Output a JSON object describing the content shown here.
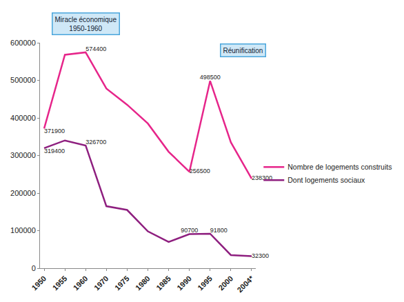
{
  "chart_data": {
    "type": "line",
    "categories": [
      "1950",
      "1955",
      "1960",
      "1970",
      "1975",
      "1980",
      "1985",
      "1990",
      "1995",
      "2000",
      "2004*"
    ],
    "series": [
      {
        "name": "Nombre de logements construits",
        "color": "#e6258a",
        "values": [
          371900,
          568000,
          574400,
          478000,
          435000,
          385000,
          310000,
          256500,
          498500,
          335000,
          238300
        ],
        "value_labels": [
          "371900",
          null,
          "574400",
          null,
          null,
          null,
          null,
          "256500",
          "498500",
          null,
          "238300"
        ]
      },
      {
        "name": "Dont logements sociaux",
        "color": "#8e1f7f",
        "values": [
          319400,
          340000,
          326700,
          165000,
          155000,
          98000,
          70000,
          90700,
          91800,
          35000,
          32300
        ],
        "value_labels": [
          "319400",
          null,
          "326700",
          null,
          null,
          null,
          null,
          "90700",
          "91800",
          null,
          "32300"
        ]
      }
    ],
    "ylim": [
      0,
      600000
    ],
    "yticks": [
      0,
      100000,
      200000,
      300000,
      400000,
      500000,
      600000
    ],
    "grid": false,
    "legend": "right",
    "annotations": [
      {
        "text": "Miracle économique\n1950-1960",
        "category": "1955"
      },
      {
        "text": "Réunification",
        "category": "1995"
      }
    ]
  }
}
